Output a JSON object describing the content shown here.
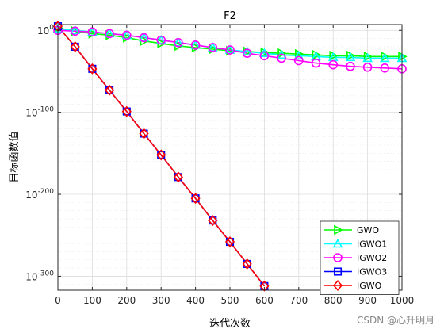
{
  "chart_data": {
    "type": "line",
    "title": "F2",
    "xlabel": "迭代次数",
    "ylabel": "目标函数值",
    "xlim": [
      0,
      1000
    ],
    "ylim_log10": [
      -317,
      7
    ],
    "y_scale": "log",
    "grid": "on",
    "legend_position": "bottom-right",
    "x_ticks": [
      "0",
      "100",
      "200",
      "300",
      "400",
      "500",
      "600",
      "700",
      "800",
      "900",
      "1000"
    ],
    "y_ticks": [
      {
        "base": "10",
        "exp": "0",
        "log10": 0
      },
      {
        "base": "10",
        "exp": "-100",
        "log10": -100
      },
      {
        "base": "10",
        "exp": "-200",
        "log10": -200
      },
      {
        "base": "10",
        "exp": "-300",
        "log10": -300
      }
    ],
    "series": [
      {
        "name": "GWO",
        "color": "#00ff00",
        "marker": "triangle-right",
        "x": [
          0,
          50,
          100,
          150,
          200,
          250,
          300,
          350,
          400,
          450,
          500,
          550,
          600,
          650,
          700,
          750,
          800,
          850,
          900,
          950,
          1000
        ],
        "log10_y": [
          3,
          -1,
          -4,
          -6,
          -9,
          -13,
          -16,
          -19,
          -21,
          -23,
          -25,
          -26,
          -27,
          -28,
          -29,
          -30,
          -31,
          -31,
          -32,
          -32,
          -32
        ]
      },
      {
        "name": "IGWO1",
        "color": "#00ffff",
        "marker": "triangle-up",
        "x": [
          0,
          50,
          100,
          150,
          200,
          250,
          300,
          350,
          400,
          450,
          500,
          550,
          600,
          650,
          700,
          750,
          800,
          850,
          900,
          950,
          1000
        ],
        "log10_y": [
          2,
          0,
          -2,
          -4,
          -6,
          -9,
          -12,
          -15,
          -18,
          -21,
          -24,
          -26,
          -28,
          -30,
          -31,
          -32,
          -33,
          -33,
          -34,
          -34,
          -34
        ]
      },
      {
        "name": "IGWO2",
        "color": "#ff00ff",
        "marker": "circle",
        "x": [
          0,
          50,
          100,
          150,
          200,
          250,
          300,
          350,
          400,
          450,
          500,
          550,
          600,
          650,
          700,
          750,
          800,
          850,
          900,
          950,
          1000
        ],
        "log10_y": [
          0,
          -1,
          -2,
          -4,
          -6,
          -9,
          -12,
          -15,
          -18,
          -21,
          -24,
          -28,
          -31,
          -34,
          -37,
          -40,
          -42,
          -44,
          -45,
          -46,
          -47
        ]
      },
      {
        "name": "IGWO3",
        "color": "#0000ff",
        "marker": "square",
        "x": [
          0,
          50,
          100,
          150,
          200,
          250,
          300,
          350,
          400,
          450,
          500,
          550,
          600
        ],
        "log10_y": [
          5,
          -20,
          -47,
          -73,
          -99,
          -126,
          -152,
          -179,
          -205,
          -232,
          -258,
          -285,
          -312
        ]
      },
      {
        "name": "IGWO",
        "color": "#ff0000",
        "marker": "diamond",
        "x": [
          0,
          50,
          100,
          150,
          200,
          250,
          300,
          350,
          400,
          450,
          500,
          550,
          600
        ],
        "log10_y": [
          5,
          -20,
          -47,
          -73,
          -99,
          -126,
          -152,
          -179,
          -205,
          -232,
          -258,
          -285,
          -312
        ]
      }
    ]
  },
  "watermark": "CSDN @心升明月"
}
